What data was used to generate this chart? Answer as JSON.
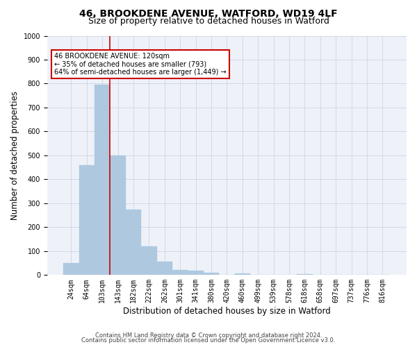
{
  "title1": "46, BROOKDENE AVENUE, WATFORD, WD19 4LF",
  "title2": "Size of property relative to detached houses in Watford",
  "xlabel": "Distribution of detached houses by size in Watford",
  "ylabel": "Number of detached properties",
  "footer1": "Contains HM Land Registry data © Crown copyright and database right 2024.",
  "footer2": "Contains public sector information licensed under the Open Government Licence v3.0.",
  "bar_labels": [
    "24sqm",
    "64sqm",
    "103sqm",
    "143sqm",
    "182sqm",
    "222sqm",
    "262sqm",
    "301sqm",
    "341sqm",
    "380sqm",
    "420sqm",
    "460sqm",
    "499sqm",
    "539sqm",
    "578sqm",
    "618sqm",
    "658sqm",
    "697sqm",
    "737sqm",
    "776sqm",
    "816sqm"
  ],
  "bar_values": [
    50,
    460,
    795,
    500,
    273,
    120,
    57,
    20,
    18,
    11,
    0,
    8,
    0,
    0,
    0,
    5,
    0,
    0,
    0,
    0,
    0
  ],
  "bar_color": "#aec8e0",
  "bar_edgecolor": "#aec8e0",
  "grid_color": "#d0d8e8",
  "bg_color": "#eef2f8",
  "ylim": [
    0,
    1000
  ],
  "yticks": [
    0,
    100,
    200,
    300,
    400,
    500,
    600,
    700,
    800,
    900,
    1000
  ],
  "subject_bar_index": 2,
  "vline_color": "#cc0000",
  "annotation_text": "46 BROOKDENE AVENUE: 120sqm\n← 35% of detached houses are smaller (793)\n64% of semi-detached houses are larger (1,449) →",
  "annotation_box_color": "#ffffff",
  "annotation_box_edgecolor": "#cc0000",
  "title1_fontsize": 10,
  "title2_fontsize": 9,
  "xlabel_fontsize": 8.5,
  "ylabel_fontsize": 8.5,
  "tick_fontsize": 7,
  "footer_fontsize": 6
}
